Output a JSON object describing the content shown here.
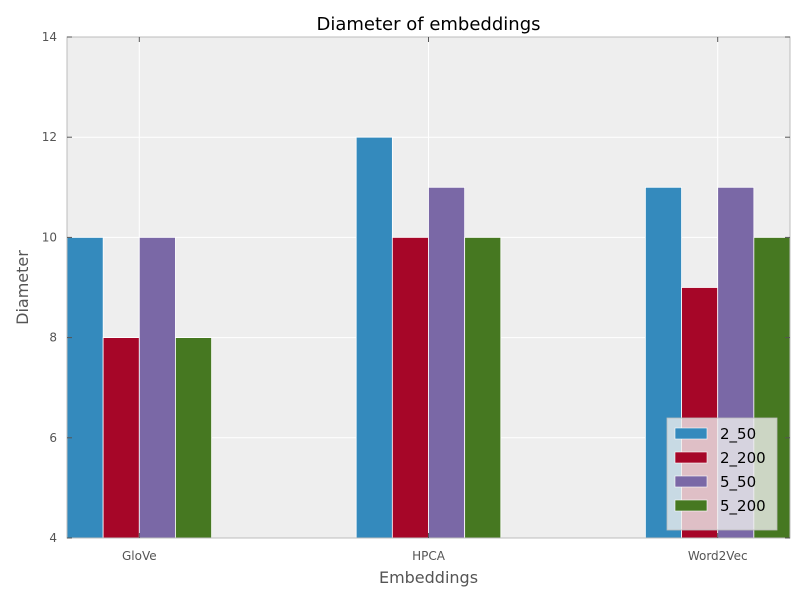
{
  "chart_data": {
    "type": "bar",
    "title": "Diameter of embeddings",
    "xlabel": "Embeddings",
    "ylabel": "Diameter",
    "categories": [
      "GloVe",
      "HPCA",
      "Word2Vec"
    ],
    "series": [
      {
        "name": "2_50",
        "color": "#348abd",
        "values": [
          10,
          12,
          11
        ]
      },
      {
        "name": "2_200",
        "color": "#a60628",
        "values": [
          8,
          10,
          9
        ]
      },
      {
        "name": "5_50",
        "color": "#7a68a6",
        "values": [
          10,
          11,
          11
        ]
      },
      {
        "name": "5_200",
        "color": "#467821",
        "values": [
          8,
          10,
          10
        ]
      }
    ],
    "ylim": [
      4,
      14
    ],
    "yticks": [
      "4",
      "6",
      "8",
      "10",
      "12",
      "14"
    ],
    "grid": true,
    "legend_position": "lower-right",
    "background": "#eeeeee"
  }
}
